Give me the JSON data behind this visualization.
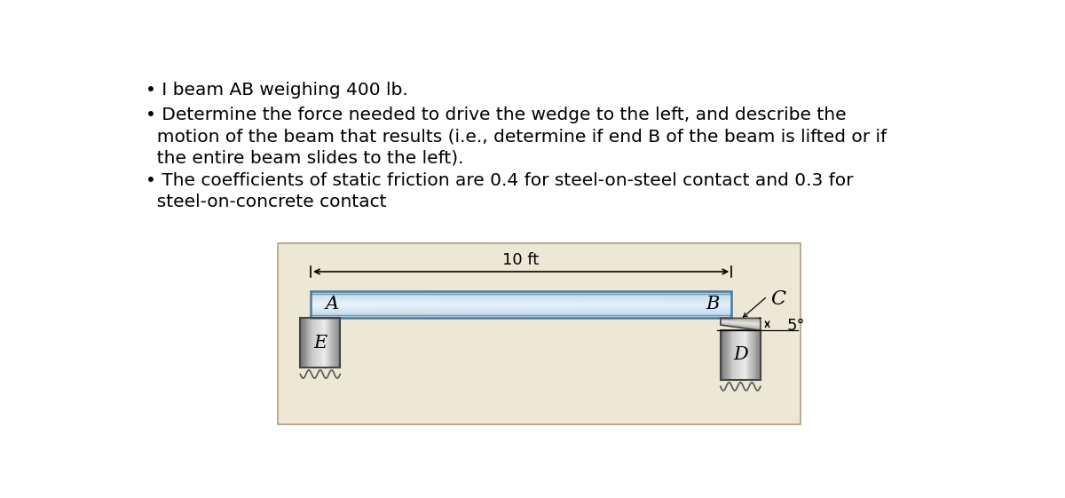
{
  "bg_color": "#ede8d5",
  "outer_bg": "#ffffff",
  "text_lines": [
    "• I beam AB weighing 400 lb.",
    "• Determine the force needed to drive the wedge to the left, and describe the",
    "  motion of the beam that results (i.e., determine if end B of the beam is lifted or if",
    "  the entire beam slides to the left).",
    "• The coefficients of static friction are 0.4 for steel-on-steel contact and 0.3 for",
    "  steel-on-concrete contact"
  ],
  "beam_color_center": "#cce3f5",
  "beam_color_edge": "#a8c8e0",
  "beam_border_color": "#4a7a9b",
  "block_grad_light": 0.88,
  "block_grad_dark": 0.45,
  "label_A": "A",
  "label_B": "B",
  "label_C": "C",
  "label_D": "D",
  "label_E": "E",
  "dim_label": "10 ft",
  "angle_label": "5°",
  "font_size_text": 14.5,
  "font_size_labels": 15
}
